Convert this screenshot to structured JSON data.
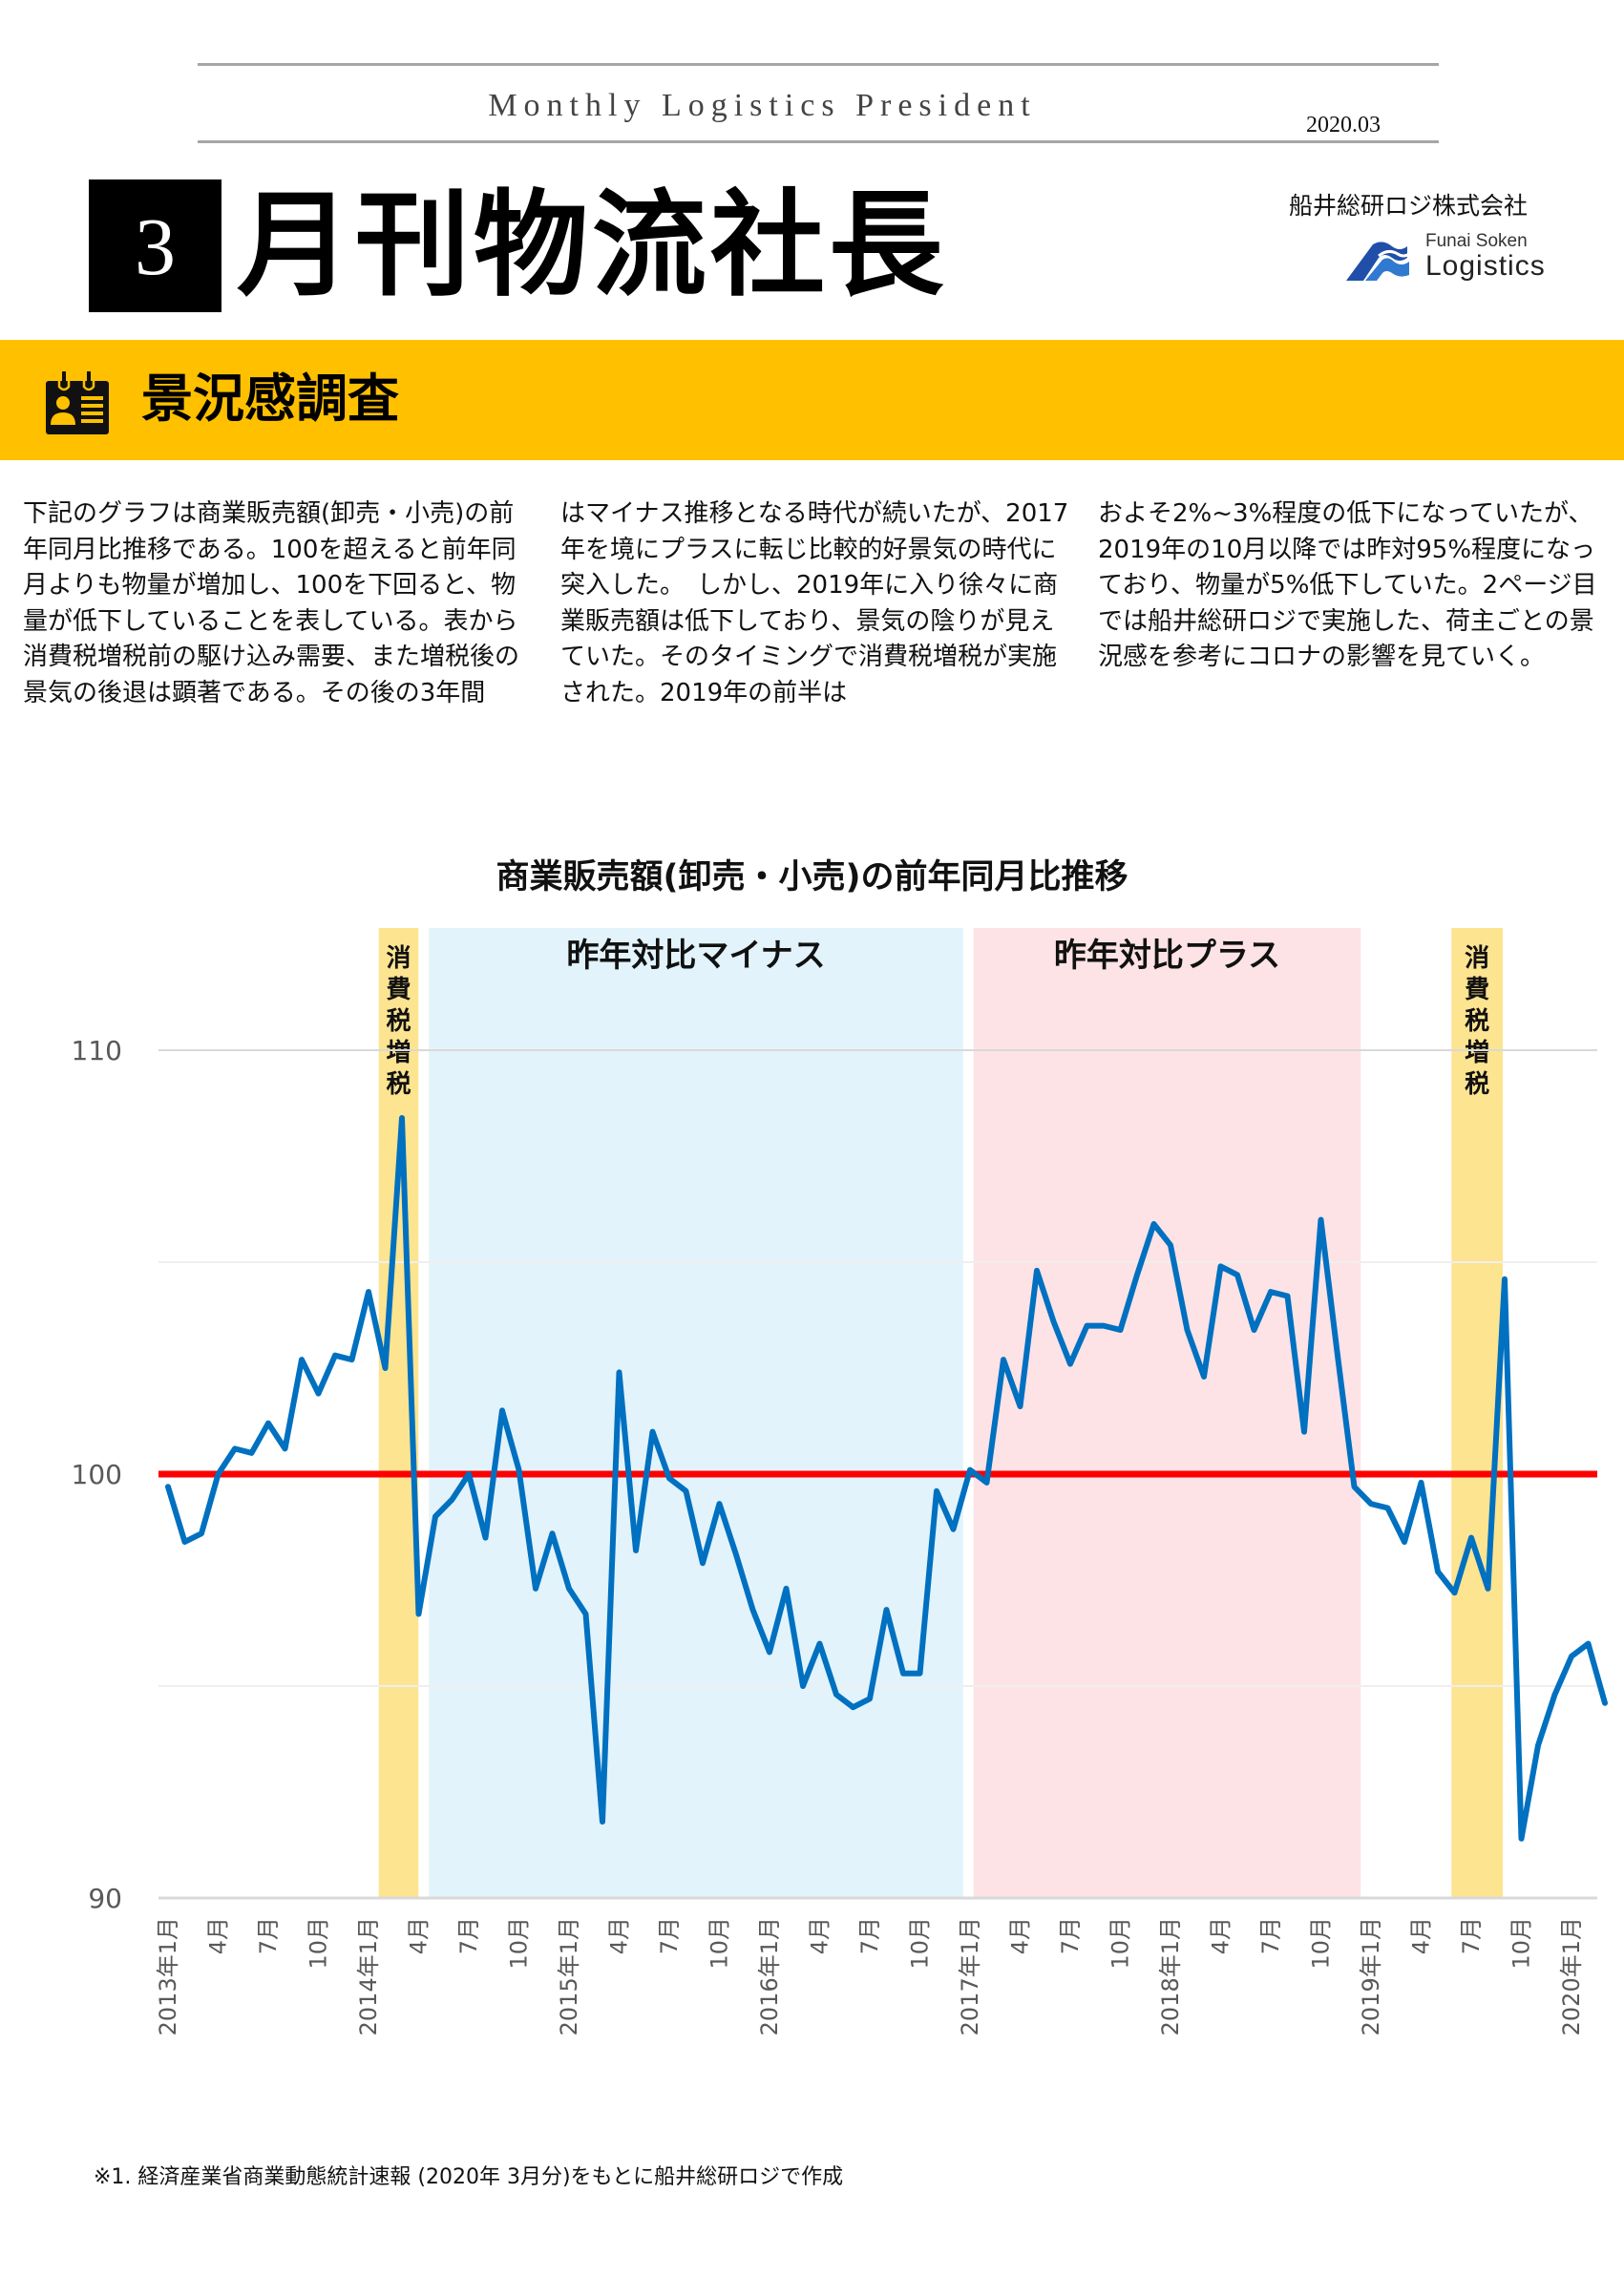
{
  "header": {
    "masthead_en": "Monthly Logistics President",
    "issue_date": "2020.03",
    "issue_number": "3",
    "title": "月刊物流社長",
    "company": "船井総研ロジ株式会社",
    "logo": {
      "line1": "Funai Soken",
      "line2": "Logistics",
      "icon": "wave-logo-icon"
    }
  },
  "section": {
    "icon": "id-badge-icon",
    "title": "景況感調査"
  },
  "body": {
    "col1": "下記のグラフは商業販売額(卸売・小売)の前年同月比推移である。100を超えると前年同月よりも物量が増加し、100を下回ると、物量が低下していることを表している。表から消費税増税前の駆け込み需要、また増税後の景気の後退は顕著である。その後の3年間",
    "col2": "はマイナス推移となる時代が続いたが、2017年を境にプラスに転じ比較的好景気の時代に突入した。　しかし、2019年に入り徐々に商業販売額は低下しており、景気の陰りが見えていた。そのタイミングで消費税増税が実施された。2019年の前半は",
    "col3": "およそ2%~3%程度の低下になっていたが、2019年の10月以降では昨対95%程度になっており、物量が5%低下していた。2ページ目では船井総研ロジで実施した、荷主ごとの景況感を参考にコロナの影響を見ていく。"
  },
  "footnote": "※1.  経済産業省商業動態統計速報 (2020年 3月分)をもとに船井総研ロジで作成",
  "chart_data": {
    "type": "line",
    "title": "商業販売額(卸売・小売)の前年同月比推移",
    "xlabel": "",
    "ylabel": "",
    "ylim": [
      90,
      110
    ],
    "yticks": [
      90,
      100,
      110
    ],
    "grid": true,
    "reference_line": {
      "value": 100,
      "color": "#ff0000"
    },
    "series_color": "#0070c0",
    "x_tick_labels": [
      "2013年1月",
      "4月",
      "7月",
      "10月",
      "2014年1月",
      "4月",
      "7月",
      "10月",
      "2015年1月",
      "4月",
      "7月",
      "10月",
      "2016年1月",
      "4月",
      "7月",
      "10月",
      "2017年1月",
      "4月",
      "7月",
      "10月",
      "2018年1月",
      "4月",
      "7月",
      "10月",
      "2019年1月",
      "4月",
      "7月",
      "10月",
      "2020年1月"
    ],
    "shaded_regions": [
      {
        "label": "消費税増税",
        "from_index": 13,
        "to_index": 14.6,
        "color": "#fde490",
        "vertical": true
      },
      {
        "label": "昨年対比マイナス",
        "from_index": 16,
        "to_index": 47.2,
        "color": "#e2f3fb"
      },
      {
        "label": "昨年対比プラス",
        "from_index": 48.6,
        "to_index": 71,
        "color": "#fde3e5"
      },
      {
        "label": "消費税増税",
        "from_index": 77.2,
        "to_index": 79.5,
        "color": "#fde490",
        "vertical": true
      }
    ],
    "series": [
      {
        "name": "前年同月比",
        "start": "2013-01",
        "values": [
          99.7,
          98.4,
          98.6,
          100.0,
          100.6,
          100.5,
          101.2,
          100.6,
          102.7,
          101.9,
          102.8,
          102.7,
          104.3,
          102.5,
          108.4,
          96.7,
          99.0,
          99.4,
          100.0,
          98.5,
          101.5,
          100.1,
          97.3,
          98.6,
          97.3,
          96.7,
          91.8,
          102.4,
          98.2,
          101.0,
          99.9,
          99.6,
          97.9,
          99.3,
          98.1,
          96.8,
          95.8,
          97.3,
          95.0,
          96.0,
          94.8,
          94.5,
          94.7,
          96.8,
          95.3,
          95.3,
          99.6,
          98.7,
          100.1,
          99.8,
          102.7,
          101.6,
          104.8,
          103.6,
          102.6,
          103.5,
          103.5,
          103.4,
          104.7,
          105.9,
          105.4,
          103.4,
          102.3,
          104.9,
          104.7,
          103.4,
          104.3,
          104.2,
          101.0,
          106.0,
          102.8,
          99.7,
          99.3,
          99.2,
          98.4,
          99.8,
          97.7,
          97.2,
          98.5,
          97.3,
          104.6,
          91.4,
          93.6,
          94.8,
          95.7,
          96.0,
          94.6
        ]
      }
    ]
  }
}
